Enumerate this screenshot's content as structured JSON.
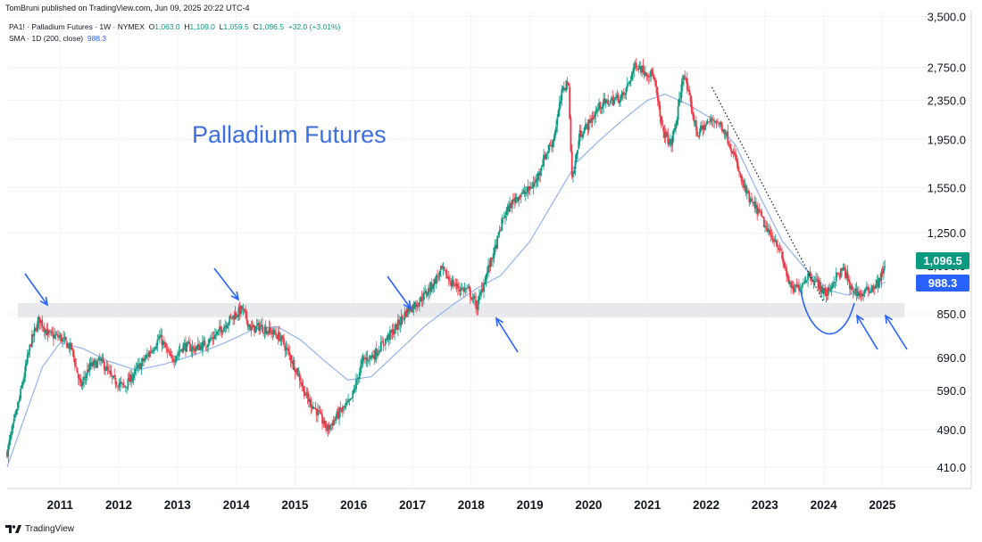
{
  "header": {
    "published": "TomBruni published on TradingView.com, Jun 09, 2025 20:22 UTC-4"
  },
  "legend": {
    "symbol": "PA1! · Palladium Futures · 1W · NYMEX",
    "o_label": "O",
    "o_value": "1,063.0",
    "h_label": "H",
    "h_value": "1,109.0",
    "l_label": "L",
    "l_value": "1,059.5",
    "c_label": "C",
    "c_value": "1,096.5",
    "change": "+32.0 (+3.01%)",
    "sma_label": "SMA · 1D (200, close)",
    "sma_value": "988.3"
  },
  "footer": {
    "brand": "TradingView"
  },
  "colors": {
    "up": "#089981",
    "down": "#f23645",
    "sma": "#90b3f0",
    "annotation": "#2962ff",
    "support_band": "#e8e9ec",
    "price_tag": "#089981",
    "sma_tag": "#2962ff"
  },
  "chart_data": {
    "type": "candlestick",
    "title": "Palladium Futures",
    "y_scale": "log",
    "ylim": [
      370,
      3600
    ],
    "xlim": [
      2010.6,
      2025.95
    ],
    "y_ticks": [
      3500,
      2750,
      2350,
      1950,
      1550,
      1250,
      850,
      690,
      590,
      490,
      410
    ],
    "y_tick_labels": [
      "3,500.0",
      "2,750.0",
      "2,350.0",
      "1,950.0",
      "1,550.0",
      "1,250.0",
      "850.0",
      "690.0",
      "590.0",
      "490.0",
      "410.0"
    ],
    "x_ticks": [
      2011,
      2012,
      2013,
      2014,
      2015,
      2016,
      2017,
      2018,
      2019,
      2020,
      2021,
      2022,
      2023,
      2024,
      2025
    ],
    "x_tick_labels": [
      "2011",
      "2012",
      "2013",
      "2014",
      "2015",
      "2016",
      "2017",
      "2018",
      "2019",
      "2020",
      "2021",
      "2022",
      "2023",
      "2024",
      "2025"
    ],
    "price_path": [
      [
        2010.6,
        440
      ],
      [
        2010.8,
        560
      ],
      [
        2011.0,
        740
      ],
      [
        2011.15,
        830
      ],
      [
        2011.3,
        770
      ],
      [
        2011.5,
        760
      ],
      [
        2011.7,
        720
      ],
      [
        2011.85,
        600
      ],
      [
        2012.0,
        660
      ],
      [
        2012.2,
        680
      ],
      [
        2012.4,
        620
      ],
      [
        2012.6,
        600
      ],
      [
        2012.8,
        650
      ],
      [
        2013.0,
        700
      ],
      [
        2013.2,
        760
      ],
      [
        2013.4,
        680
      ],
      [
        2013.6,
        730
      ],
      [
        2013.8,
        720
      ],
      [
        2014.0,
        740
      ],
      [
        2014.2,
        780
      ],
      [
        2014.4,
        830
      ],
      [
        2014.6,
        870
      ],
      [
        2014.75,
        790
      ],
      [
        2014.9,
        800
      ],
      [
        2015.1,
        780
      ],
      [
        2015.25,
        760
      ],
      [
        2015.4,
        700
      ],
      [
        2015.55,
        640
      ],
      [
        2015.7,
        570
      ],
      [
        2015.85,
        540
      ],
      [
        2016.05,
        490
      ],
      [
        2016.25,
        530
      ],
      [
        2016.45,
        560
      ],
      [
        2016.65,
        680
      ],
      [
        2016.85,
        700
      ],
      [
        2017.0,
        740
      ],
      [
        2017.2,
        790
      ],
      [
        2017.4,
        860
      ],
      [
        2017.6,
        900
      ],
      [
        2017.8,
        960
      ],
      [
        2018.0,
        1050
      ],
      [
        2018.15,
        990
      ],
      [
        2018.3,
        960
      ],
      [
        2018.45,
        950
      ],
      [
        2018.6,
        880
      ],
      [
        2018.75,
        1020
      ],
      [
        2018.9,
        1150
      ],
      [
        2019.05,
        1350
      ],
      [
        2019.25,
        1480
      ],
      [
        2019.45,
        1520
      ],
      [
        2019.6,
        1600
      ],
      [
        2019.75,
        1800
      ],
      [
        2019.9,
        1950
      ],
      [
        2020.05,
        2450
      ],
      [
        2020.15,
        2600
      ],
      [
        2020.22,
        1600
      ],
      [
        2020.35,
        2000
      ],
      [
        2020.5,
        2100
      ],
      [
        2020.7,
        2300
      ],
      [
        2020.9,
        2350
      ],
      [
        2021.1,
        2400
      ],
      [
        2021.3,
        2800
      ],
      [
        2021.45,
        2700
      ],
      [
        2021.6,
        2650
      ],
      [
        2021.75,
        2050
      ],
      [
        2021.9,
        1900
      ],
      [
        2022.0,
        2150
      ],
      [
        2022.12,
        2700
      ],
      [
        2022.2,
        2400
      ],
      [
        2022.35,
        2000
      ],
      [
        2022.5,
        2100
      ],
      [
        2022.65,
        2150
      ],
      [
        2022.8,
        2050
      ],
      [
        2022.95,
        1850
      ],
      [
        2023.1,
        1600
      ],
      [
        2023.25,
        1450
      ],
      [
        2023.4,
        1380
      ],
      [
        2023.55,
        1250
      ],
      [
        2023.7,
        1200
      ],
      [
        2023.85,
        1050
      ],
      [
        2023.95,
        950
      ],
      [
        2024.1,
        970
      ],
      [
        2024.25,
        1030
      ],
      [
        2024.4,
        980
      ],
      [
        2024.55,
        930
      ],
      [
        2024.7,
        1010
      ],
      [
        2024.85,
        1050
      ],
      [
        2024.95,
        960
      ],
      [
        2025.15,
        930
      ],
      [
        2025.3,
        960
      ],
      [
        2025.45,
        990
      ],
      [
        2025.52,
        1060
      ],
      [
        2025.56,
        1096.5
      ]
    ],
    "sma_path": [
      [
        2010.6,
        410
      ],
      [
        2010.9,
        520
      ],
      [
        2011.2,
        660
      ],
      [
        2011.5,
        740
      ],
      [
        2011.9,
        720
      ],
      [
        2012.3,
        680
      ],
      [
        2012.8,
        650
      ],
      [
        2013.3,
        670
      ],
      [
        2013.8,
        700
      ],
      [
        2014.3,
        740
      ],
      [
        2014.8,
        790
      ],
      [
        2015.2,
        800
      ],
      [
        2015.6,
        750
      ],
      [
        2016.0,
        680
      ],
      [
        2016.4,
        620
      ],
      [
        2016.8,
        630
      ],
      [
        2017.2,
        700
      ],
      [
        2017.7,
        800
      ],
      [
        2018.2,
        890
      ],
      [
        2018.6,
        960
      ],
      [
        2019.0,
        1020
      ],
      [
        2019.5,
        1200
      ],
      [
        2019.9,
        1450
      ],
      [
        2020.3,
        1750
      ],
      [
        2020.7,
        1950
      ],
      [
        2021.1,
        2150
      ],
      [
        2021.5,
        2350
      ],
      [
        2021.8,
        2420
      ],
      [
        2022.2,
        2300
      ],
      [
        2022.6,
        2150
      ],
      [
        2023.0,
        1900
      ],
      [
        2023.4,
        1500
      ],
      [
        2023.8,
        1200
      ],
      [
        2024.2,
        1050
      ],
      [
        2024.6,
        950
      ],
      [
        2024.9,
        930
      ],
      [
        2025.2,
        950
      ],
      [
        2025.56,
        988.3
      ]
    ],
    "support_band": [
      835,
      895
    ],
    "trendline": [
      [
        2022.6,
        2500
      ],
      [
        2024.5,
        900
      ]
    ],
    "last_price_label": "1,096.5",
    "sma_value_label": "988.3",
    "hidden_label": "1,096.5"
  }
}
